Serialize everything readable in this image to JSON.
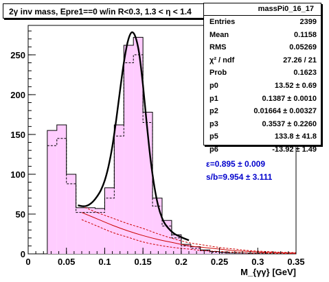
{
  "title": "2γ inv mass, Epre1==0 w/in R<0.3, 1.3 < η < 1.4",
  "stats": {
    "name": "massPi0_16_17",
    "rows": [
      {
        "label": "Entries",
        "value": "2399"
      },
      {
        "label": "Mean",
        "value": "0.1158"
      },
      {
        "label": "RMS",
        "value": "0.05269"
      },
      {
        "label": "χ² / ndf",
        "value": "27.26 / 21"
      },
      {
        "label": "Prob",
        "value": "0.1623"
      },
      {
        "label": "p0",
        "value": "13.52 ± 0.69"
      },
      {
        "label": "p1",
        "value": "0.1387 ± 0.0010"
      },
      {
        "label": "p2",
        "value": "0.01664 ± 0.00327"
      },
      {
        "label": "p3",
        "value": "0.3537 ± 0.2260"
      },
      {
        "label": "p5",
        "value": "133.8 ± 41.8"
      },
      {
        "label": "p6",
        "value": "-13.92 ± 1.49"
      }
    ]
  },
  "annotations": {
    "efficiency": "ε=0.895 ± 0.009",
    "signal_background": "s/b=9.954 ± 3.111"
  },
  "colors": {
    "fill": "#ffccff",
    "histogram": "#000000",
    "fit": "#000000",
    "background_curve": "#cc0000",
    "annotation": "#0000cc"
  },
  "chart_data": {
    "type": "bar",
    "xlabel": "M_{γγ} [GeV]",
    "ylabel": "",
    "xlim": [
      0,
      0.35
    ],
    "ylim": [
      0,
      287
    ],
    "x_ticks": [
      "0",
      "0.05",
      "0.1",
      "0.15",
      "0.2",
      "0.25",
      "0.3",
      "0.35"
    ],
    "y_ticks": [
      "0",
      "50",
      "100",
      "150",
      "200",
      "250"
    ],
    "bin_width": 0.0125,
    "series": [
      {
        "style": "filled-histogram",
        "bin_lows": [
          0.025,
          0.0375,
          0.05,
          0.0625,
          0.075,
          0.0875,
          0.1,
          0.1125,
          0.125,
          0.1375,
          0.15,
          0.1625,
          0.175,
          0.1875,
          0.2,
          0.2125,
          0.225,
          0.2375,
          0.25,
          0.2625,
          0.275,
          0.2875,
          0.3
        ],
        "values": [
          155,
          162,
          100,
          58,
          58,
          57,
          83,
          162,
          262,
          272,
          178,
          70,
          42,
          24,
          12,
          9,
          5,
          3,
          2,
          1,
          1,
          1,
          1
        ]
      },
      {
        "style": "dashed-histogram",
        "bin_lows": [
          0.025,
          0.0375,
          0.05,
          0.0625,
          0.075,
          0.0875,
          0.1,
          0.1125,
          0.125,
          0.1375,
          0.15,
          0.1625,
          0.175,
          0.1875,
          0.2,
          0.2125,
          0.225,
          0.2375,
          0.25,
          0.2625,
          0.275,
          0.2875,
          0.3
        ],
        "values": [
          136,
          145,
          88,
          52,
          52,
          52,
          70,
          148,
          240,
          250,
          165,
          60,
          35,
          20,
          10,
          7,
          4,
          2,
          1,
          1,
          1,
          0,
          0
        ]
      },
      {
        "style": "fit-curve",
        "x": [
          0.065,
          0.07,
          0.075,
          0.08,
          0.085,
          0.09,
          0.095,
          0.1,
          0.105,
          0.11,
          0.115,
          0.12,
          0.125,
          0.13,
          0.135,
          0.14,
          0.145,
          0.15,
          0.155,
          0.16,
          0.165,
          0.17,
          0.175,
          0.18,
          0.19,
          0.2,
          0.21
        ],
        "values": [
          61,
          60,
          60,
          62,
          66,
          72,
          80,
          92,
          110,
          135,
          168,
          205,
          240,
          266,
          278,
          273,
          252,
          212,
          163,
          118,
          84,
          60,
          45,
          36,
          26,
          21,
          17
        ]
      },
      {
        "style": "background-curve",
        "x": [
          0.07,
          0.09,
          0.11,
          0.13,
          0.15,
          0.17,
          0.19,
          0.21,
          0.23,
          0.25,
          0.27,
          0.29,
          0.31,
          0.33,
          0.35
        ],
        "values": [
          52,
          44,
          36,
          29,
          23,
          18,
          14,
          10,
          8,
          6,
          4,
          3,
          2,
          1.5,
          1
        ]
      },
      {
        "style": "background-band-upper",
        "x": [
          0.07,
          0.09,
          0.11,
          0.13,
          0.15,
          0.17,
          0.19,
          0.21,
          0.23,
          0.25,
          0.27,
          0.29,
          0.31,
          0.33,
          0.35
        ],
        "values": [
          60,
          52,
          45,
          38,
          32,
          25,
          19,
          14,
          11,
          8,
          6,
          4,
          3,
          2,
          1.5
        ]
      },
      {
        "style": "background-band-lower",
        "x": [
          0.07,
          0.09,
          0.11,
          0.13,
          0.15,
          0.17,
          0.19,
          0.21,
          0.23,
          0.25,
          0.27,
          0.29,
          0.31,
          0.33,
          0.35
        ],
        "values": [
          43,
          35,
          27,
          21,
          15,
          11,
          8,
          6,
          4,
          3,
          2,
          1,
          1,
          0.5,
          0.3
        ]
      }
    ]
  }
}
